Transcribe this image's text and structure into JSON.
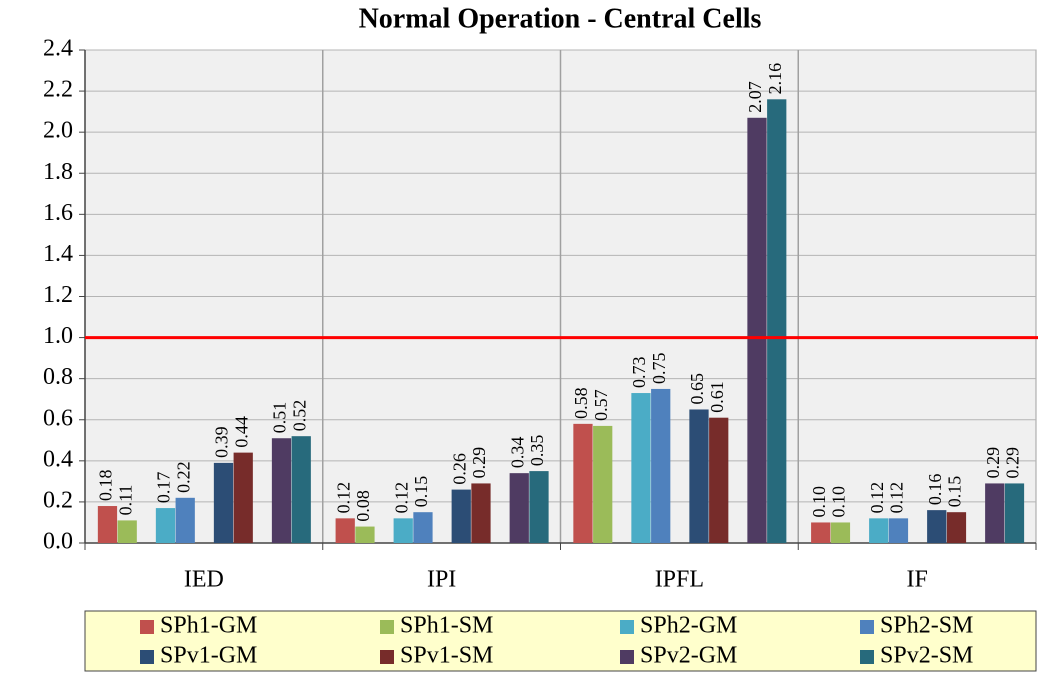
{
  "chart_data": {
    "type": "bar",
    "title": "Normal Operation - Central Cells",
    "categories": [
      "IED",
      "IPI",
      "IPFL",
      "IF"
    ],
    "series": [
      {
        "name": "SPh1-GM",
        "color": "#c0504d",
        "values": [
          0.18,
          0.12,
          0.58,
          0.1
        ],
        "value_labels": [
          "0.18",
          "0.12",
          "0.58",
          "0.10"
        ]
      },
      {
        "name": "SPh1-SM",
        "color": "#9bbb59",
        "values": [
          0.11,
          0.08,
          0.57,
          0.1
        ],
        "value_labels": [
          "0.11",
          "0.08",
          "0.57",
          "0.10"
        ]
      },
      {
        "name": "SPh2-GM",
        "color": "#4bacc6",
        "values": [
          0.17,
          0.12,
          0.73,
          0.12
        ],
        "value_labels": [
          "0.17",
          "0.12",
          "0.73",
          "0.12"
        ]
      },
      {
        "name": "SPh2-SM",
        "color": "#4f81bd",
        "values": [
          0.22,
          0.15,
          0.75,
          0.12
        ],
        "value_labels": [
          "0.22",
          "0.15",
          "0.75",
          "0.12"
        ]
      },
      {
        "name": "SPv1-GM",
        "color": "#2c4d75",
        "values": [
          0.39,
          0.26,
          0.65,
          0.16
        ],
        "value_labels": [
          "0.39",
          "0.26",
          "0.65",
          "0.16"
        ]
      },
      {
        "name": "SPv1-SM",
        "color": "#772c2a",
        "values": [
          0.44,
          0.29,
          0.61,
          0.15
        ],
        "value_labels": [
          "0.44",
          "0.29",
          "0.61",
          "0.15"
        ]
      },
      {
        "name": "SPv2-GM",
        "color": "#4f3b62",
        "values": [
          0.51,
          0.34,
          2.07,
          0.29
        ],
        "value_labels": [
          "0.51",
          "0.34",
          "2.07",
          "0.29"
        ]
      },
      {
        "name": "SPv2-SM",
        "color": "#276a7c",
        "values": [
          0.52,
          0.35,
          2.16,
          0.29
        ],
        "value_labels": [
          "0.52",
          "0.35",
          "2.16",
          "0.29"
        ]
      }
    ],
    "ylim": [
      0,
      2.4
    ],
    "yticks": [
      {
        "value": 0,
        "label": "0.0"
      },
      0.2,
      0.4,
      0.6,
      0.8,
      {
        "value": 1,
        "label": "1.0"
      },
      1.2,
      1.4,
      1.6,
      1.8,
      {
        "value": 2,
        "label": "2.0"
      },
      2.2,
      2.4
    ],
    "grid": true,
    "reference_line": {
      "value": 1,
      "color": "#ff0000"
    },
    "legend": "bottom"
  }
}
